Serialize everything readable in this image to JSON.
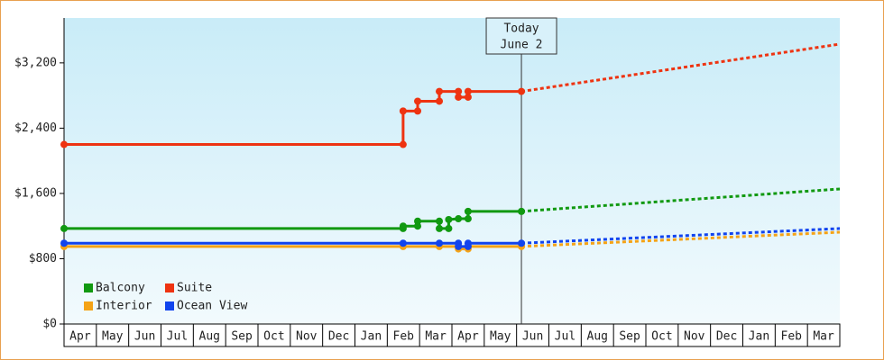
{
  "chart_data": {
    "type": "line",
    "categories": [
      "Apr",
      "May",
      "Jun",
      "Jul",
      "Aug",
      "Sep",
      "Oct",
      "Nov",
      "Dec",
      "Jan",
      "Feb",
      "Mar",
      "Apr",
      "May",
      "Jun",
      "Jul",
      "Aug",
      "Sep",
      "Oct",
      "Nov",
      "Dec",
      "Jan",
      "Feb",
      "Mar"
    ],
    "xlim": [
      0,
      24
    ],
    "ylim": [
      0,
      3750
    ],
    "yticks": [
      {
        "value": 0,
        "label": "$0"
      },
      {
        "value": 800,
        "label": "$800"
      },
      {
        "value": 1600,
        "label": "$1,600"
      },
      {
        "value": 2400,
        "label": "$2,400"
      },
      {
        "value": 3200,
        "label": "$3,200"
      }
    ],
    "annotation": {
      "x": 14.15,
      "lines": [
        "Today",
        "June 2"
      ]
    },
    "series": [
      {
        "name": "Balcony",
        "color": "#119911",
        "x": [
          0,
          10.49,
          10.49,
          10.94,
          10.94,
          11.61,
          11.61,
          11.9,
          11.9,
          12.2,
          12.5,
          12.5,
          14.15
        ],
        "values": [
          1170,
          1170,
          1200,
          1200,
          1260,
          1260,
          1170,
          1170,
          1280,
          1290,
          1290,
          1380,
          1380
        ],
        "projection": {
          "x": [
            14.15,
            24
          ],
          "values": [
            1380,
            1655
          ]
        }
      },
      {
        "name": "Suite",
        "color": "#ee3311",
        "x": [
          0,
          10.49,
          10.49,
          10.94,
          10.94,
          11.61,
          11.61,
          12.2,
          12.2,
          12.5,
          12.5,
          14.15
        ],
        "values": [
          2200,
          2200,
          2610,
          2610,
          2730,
          2730,
          2850,
          2850,
          2780,
          2780,
          2850,
          2850
        ],
        "projection": {
          "x": [
            14.15,
            24
          ],
          "values": [
            2850,
            3430
          ]
        }
      },
      {
        "name": "Interior",
        "color": "#f5a316",
        "x": [
          0,
          10.49,
          11.61,
          12.2,
          12.2,
          12.5,
          12.5,
          14.15
        ],
        "values": [
          950,
          950,
          950,
          950,
          920,
          920,
          950,
          950
        ],
        "projection": {
          "x": [
            14.15,
            24
          ],
          "values": [
            950,
            1125
          ]
        }
      },
      {
        "name": "Ocean View",
        "color": "#1144ee",
        "x": [
          0,
          10.49,
          11.61,
          12.2,
          12.2,
          12.5,
          12.5,
          14.15
        ],
        "values": [
          990,
          990,
          990,
          990,
          950,
          950,
          990,
          990
        ],
        "projection": {
          "x": [
            14.15,
            24
          ],
          "values": [
            990,
            1170
          ]
        }
      }
    ]
  }
}
